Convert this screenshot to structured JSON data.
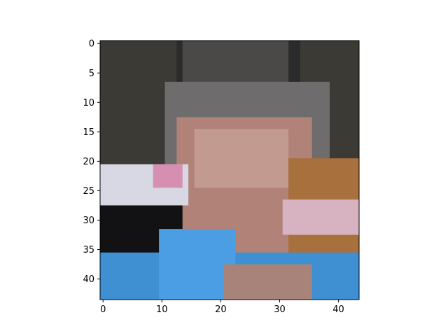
{
  "chart_data": {
    "type": "heatmap",
    "image_shape": [
      44,
      44
    ],
    "origin": "upper",
    "xlim": [
      -0.5,
      43.5
    ],
    "ylim": [
      43.5,
      -0.5
    ],
    "xticks": [
      0,
      10,
      20,
      30,
      40
    ],
    "xtick_labels": [
      "0",
      "10",
      "20",
      "30",
      "40"
    ],
    "yticks": [
      0,
      5,
      10,
      15,
      20,
      25,
      30,
      35,
      40
    ],
    "ytick_labels": [
      "0",
      "5",
      "10",
      "15",
      "20",
      "25",
      "30",
      "35",
      "40"
    ],
    "grid": false,
    "regions": [
      {
        "x": [
          0,
          43
        ],
        "y": [
          0,
          43
        ],
        "color": "#3b3a34"
      },
      {
        "x": [
          13,
          33
        ],
        "y": [
          0,
          18
        ],
        "color": "#2c2b2b"
      },
      {
        "x": [
          14,
          31
        ],
        "y": [
          0,
          7
        ],
        "color": "#4a4948"
      },
      {
        "x": [
          11,
          38
        ],
        "y": [
          7,
          22
        ],
        "color": "#6e6c6c"
      },
      {
        "x": [
          13,
          35
        ],
        "y": [
          13,
          40
        ],
        "color": "#b08278"
      },
      {
        "x": [
          16,
          31
        ],
        "y": [
          15,
          24
        ],
        "color": "#c39a90"
      },
      {
        "x": [
          0,
          14
        ],
        "y": [
          21,
          27
        ],
        "color": "#d8d8e4"
      },
      {
        "x": [
          9,
          13
        ],
        "y": [
          21,
          24
        ],
        "color": "#d78fb1"
      },
      {
        "x": [
          32,
          43
        ],
        "y": [
          20,
          39
        ],
        "color": "#a8703c"
      },
      {
        "x": [
          31,
          43
        ],
        "y": [
          27,
          32
        ],
        "color": "#d7b2c0"
      },
      {
        "x": [
          0,
          13
        ],
        "y": [
          28,
          36
        ],
        "color": "#121214"
      },
      {
        "x": [
          0,
          43
        ],
        "y": [
          36,
          43
        ],
        "color": "#3f8fd3"
      },
      {
        "x": [
          10,
          22
        ],
        "y": [
          32,
          43
        ],
        "color": "#4b9de4"
      },
      {
        "x": [
          21,
          35
        ],
        "y": [
          38,
          43
        ],
        "color": "#a88379"
      }
    ]
  }
}
